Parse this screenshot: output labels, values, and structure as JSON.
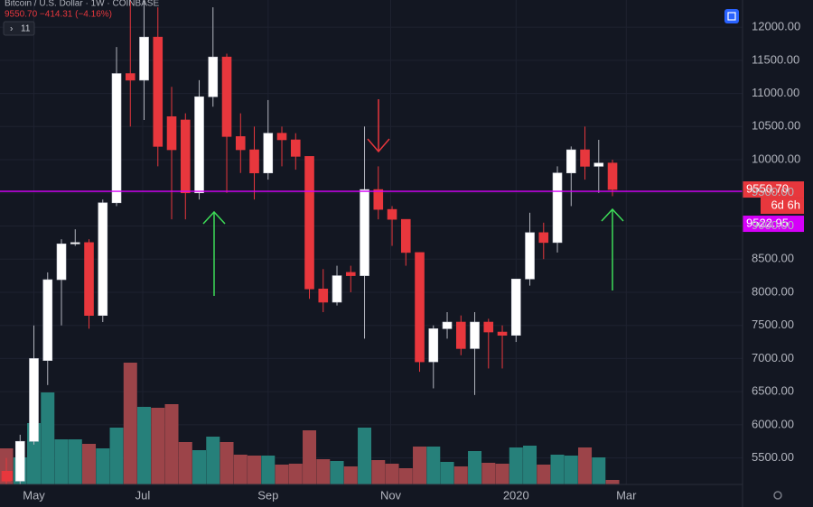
{
  "chart_data": {
    "type": "candlestick",
    "title": "Bitcoin / U.S. Dollar · 1W · COINBASE",
    "quote": "9550.70 −414.31 (−4.16%)",
    "indicators": "11",
    "open": [
      5300,
      5150,
      5750,
      6970,
      8190,
      8730,
      8750,
      7650,
      9350,
      11300,
      11200,
      11850,
      10650,
      10600,
      9500,
      10950,
      11550,
      10350,
      10150,
      9800,
      10400,
      10300,
      10050,
      8050,
      7850,
      8300,
      8250,
      9550,
      9250,
      9100,
      8600,
      6950,
      7450,
      7550,
      7150,
      7550,
      7400,
      7350,
      8200,
      8900,
      8750,
      9800,
      10150,
      9900,
      9950
    ],
    "high": [
      5500,
      5850,
      7500,
      8300,
      8800,
      8950,
      8800,
      9400,
      11700,
      13200,
      13000,
      12300,
      11100,
      10700,
      11200,
      12300,
      11600,
      10700,
      10500,
      10900,
      10500,
      10400,
      10050,
      8350,
      8400,
      8400,
      10500,
      9900,
      9300,
      9100,
      8600,
      7500,
      7700,
      7650,
      7700,
      7600,
      7500,
      8200,
      9200,
      9050,
      9900,
      10200,
      10500,
      10300,
      10000
    ],
    "low": [
      5100,
      5100,
      5700,
      6600,
      7500,
      8700,
      7450,
      7550,
      9300,
      10500,
      10600,
      9900,
      9100,
      9100,
      9400,
      10800,
      9500,
      9800,
      9400,
      9700,
      9900,
      9850,
      7900,
      7700,
      7800,
      8000,
      7300,
      9100,
      8700,
      8400,
      6800,
      6550,
      7300,
      7050,
      6450,
      6850,
      6850,
      7250,
      8100,
      8500,
      8600,
      9300,
      9700,
      9500,
      9450
    ],
    "close": [
      5150,
      5750,
      7000,
      8190,
      8730,
      8750,
      7650,
      9350,
      11300,
      11200,
      11850,
      10200,
      10150,
      9500,
      10950,
      11550,
      10350,
      10150,
      9800,
      10400,
      10300,
      10050,
      8050,
      7850,
      8250,
      8250,
      9550,
      9250,
      9100,
      8600,
      6950,
      7450,
      7550,
      7150,
      7550,
      7400,
      7350,
      8200,
      8900,
      8750,
      9800,
      10150,
      9900,
      9950,
      9550.7
    ],
    "volume": [
      40,
      30,
      68,
      102,
      50,
      50,
      45,
      40,
      63,
      135,
      86,
      85,
      89,
      47,
      38,
      53,
      47,
      33,
      32,
      32,
      22,
      23,
      60,
      28,
      26,
      20,
      63,
      27,
      23,
      18,
      42,
      42,
      25,
      20,
      37,
      24,
      23,
      41,
      43,
      22,
      33,
      32,
      41,
      30,
      5
    ],
    "up_color": "#ffffff",
    "down_color": "#e8373d",
    "volume_up_color": "#26807a",
    "volume_down_color": "#9c4449",
    "ylim": [
      5100,
      12410
    ],
    "volume_lim": [
      0,
      537
    ],
    "xlim": [
      -0.46,
      53.44
    ],
    "yticks": [
      {
        "value": 5500,
        "label": "5500.00"
      },
      {
        "value": 6000,
        "label": "6000.00"
      },
      {
        "value": 6500,
        "label": "6500.00"
      },
      {
        "value": 7000,
        "label": "7000.00"
      },
      {
        "value": 7500,
        "label": "7500.00"
      },
      {
        "value": 8000,
        "label": "8000.00"
      },
      {
        "value": 8500,
        "label": "8500.00"
      },
      {
        "value": 9000,
        "label": "9000.00"
      },
      {
        "value": 9500,
        "label": "9500.00"
      },
      {
        "value": 10000,
        "label": "10000.00"
      },
      {
        "value": 10500,
        "label": "10500.00"
      },
      {
        "value": 11000,
        "label": "11000.00"
      },
      {
        "value": 11500,
        "label": "11500.00"
      },
      {
        "value": 12000,
        "label": "12000.00"
      }
    ],
    "xticks": [
      {
        "value": 2,
        "label": "May"
      },
      {
        "value": 9.9,
        "label": "Jul"
      },
      {
        "value": 19,
        "label": "Sep"
      },
      {
        "value": 27.9,
        "label": "Nov"
      },
      {
        "value": 37,
        "label": "2020"
      },
      {
        "value": 45,
        "label": "Mar"
      }
    ],
    "grid": true,
    "last_price": {
      "value": 9550.7,
      "label": "9550.70"
    },
    "countdown": "6d 6h",
    "hline": {
      "value": 9522.95,
      "label": "9522.95",
      "color": "#d500f9"
    }
  }
}
